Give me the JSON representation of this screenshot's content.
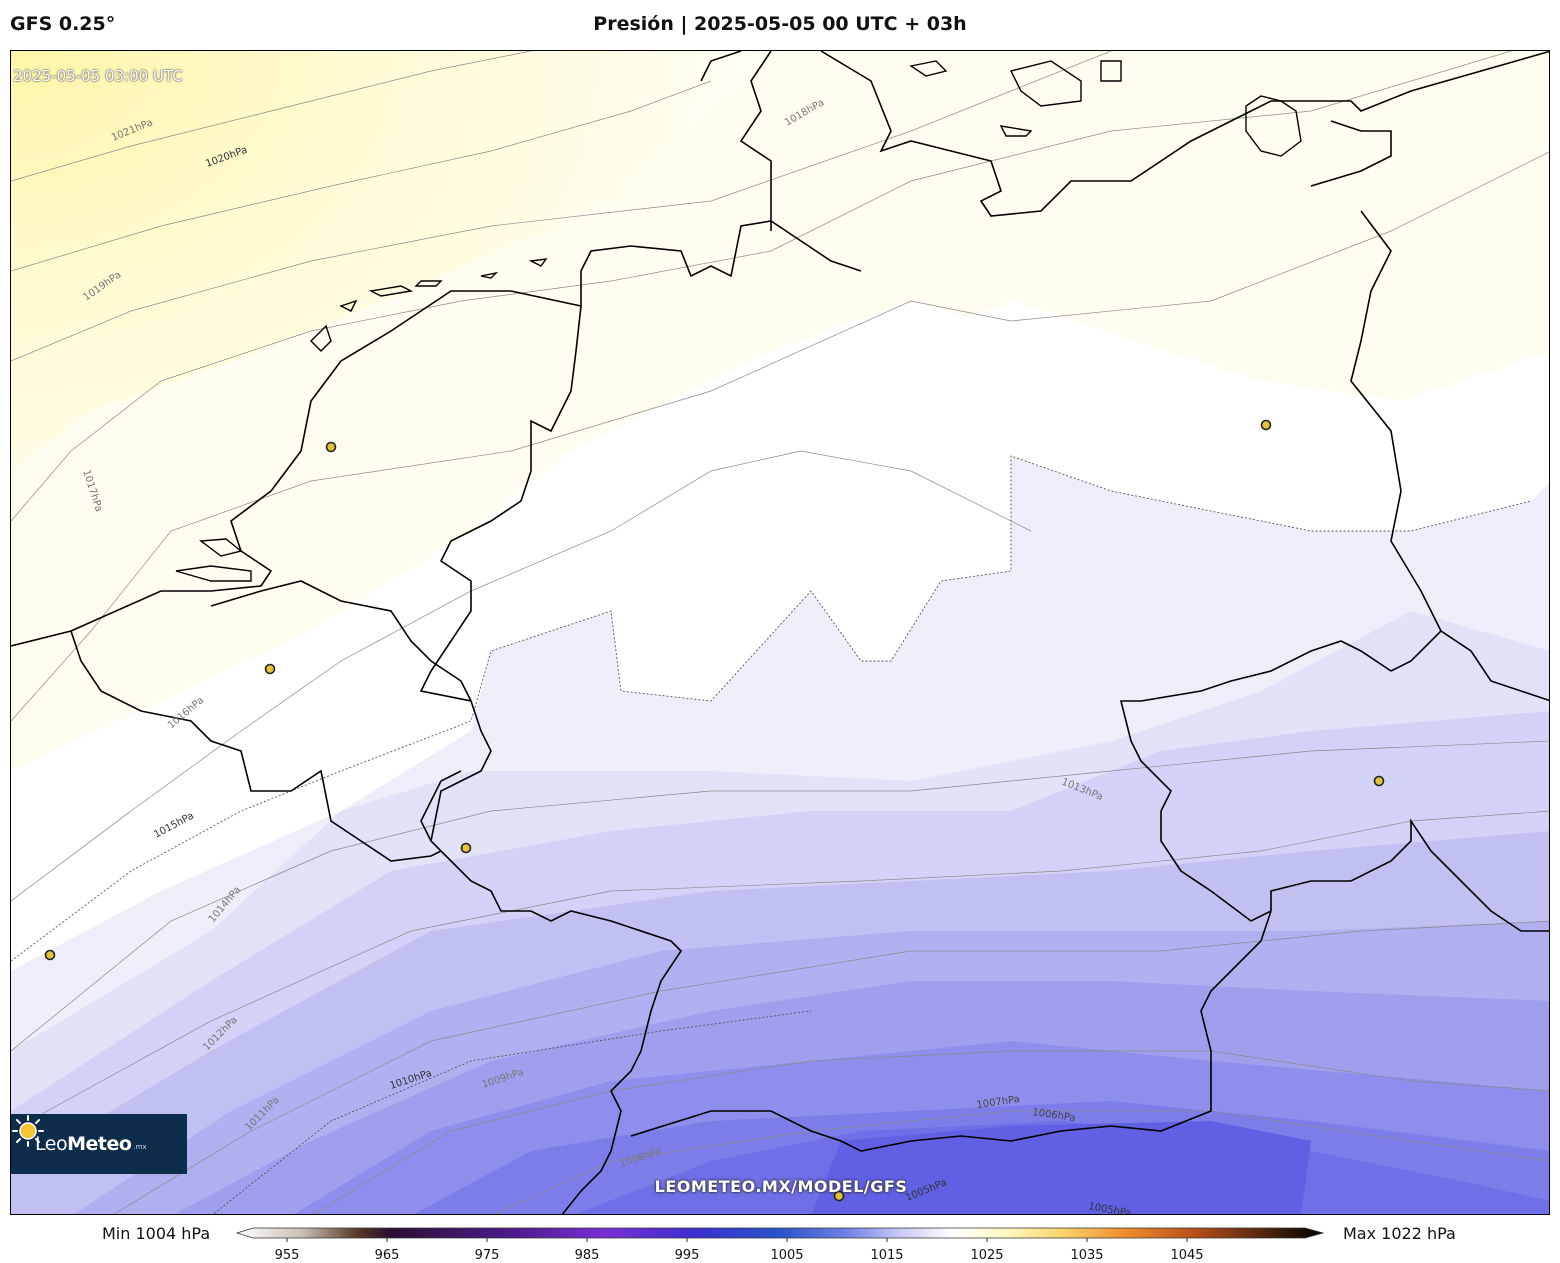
{
  "header": {
    "model": "GFS 0.25°",
    "title": "Presión | 2025-05-05 00 UTC + 03h"
  },
  "map": {
    "valid_time": "2025-05-05 03:00 UTC",
    "watermark": "LEOMETEO.MX/MODEL/GFS",
    "contour_labels": [
      "1021hPa",
      "1020hPa",
      "1019hPa",
      "1018hPa",
      "1017hPa",
      "1016hPa",
      "1015hPa",
      "1014hPa",
      "1013hPa",
      "1012hPa",
      "1011hPa",
      "1010hPa",
      "1009hPa",
      "1008hPa",
      "1007hPa",
      "1006hPa",
      "1005hPa",
      "1005hPa"
    ],
    "city_markers_count": 7
  },
  "logo": {
    "brand_light": "Leo",
    "brand_bold": "Meteo",
    "suffix": ".mx"
  },
  "colorbar": {
    "min_label": "Min 1004 hPa",
    "max_label": "Max 1022 hPa",
    "ticks": [
      "955",
      "965",
      "975",
      "985",
      "995",
      "1005",
      "1015",
      "1025",
      "1035",
      "1045"
    ]
  },
  "colors": {
    "high_pressure": "#fff3a6",
    "neutral": "#ffffff",
    "low_pressure": "#5f5fe6"
  }
}
